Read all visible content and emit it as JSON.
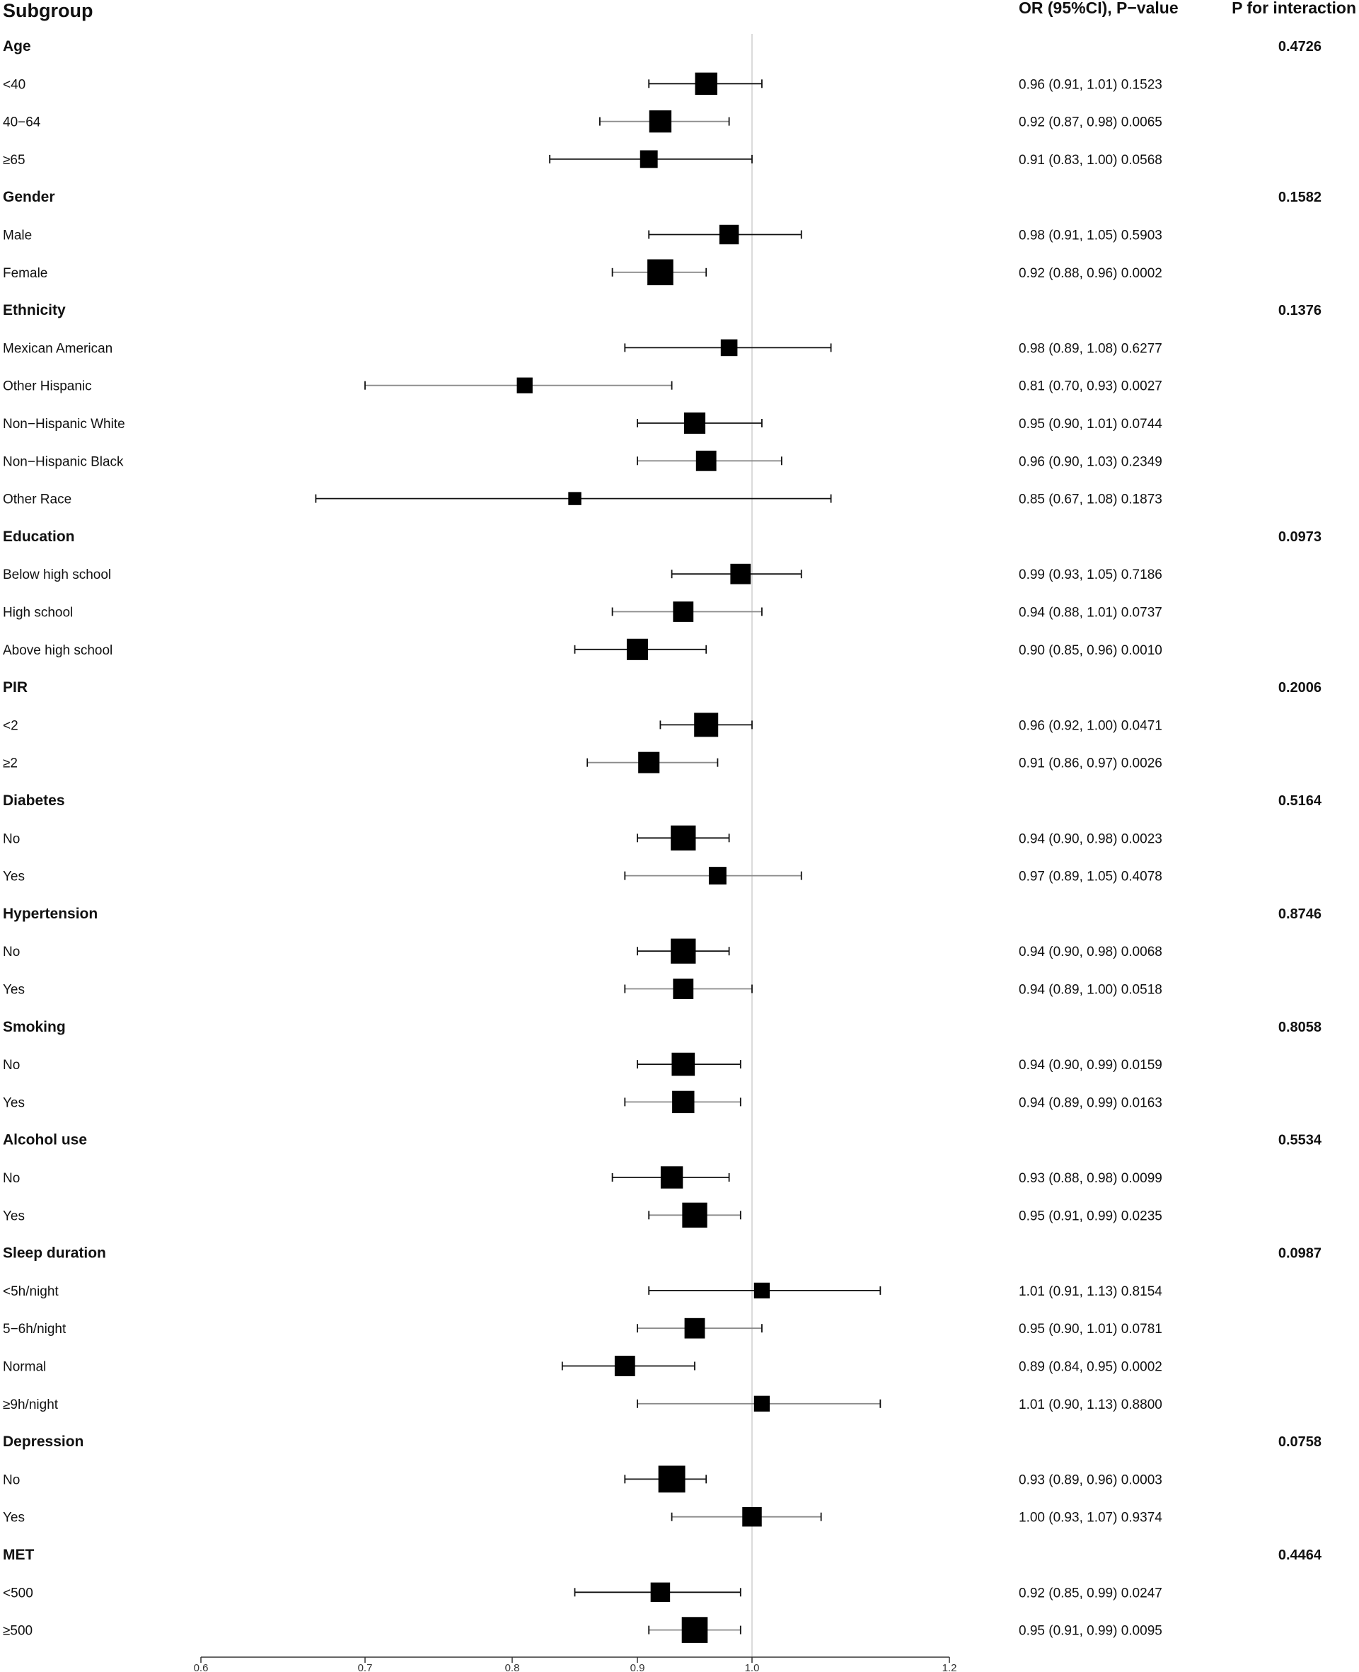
{
  "chart_data": {
    "type": "forest",
    "headers": {
      "subgroup": "Subgroup",
      "or": "OR (95%CI), P−value",
      "p_interaction": "P for interaction"
    },
    "reference_line": 1.0,
    "xlim": [
      0.6,
      1.2
    ],
    "x_ticks": [
      {
        "value": 0.6,
        "label": "0.6"
      },
      {
        "value": 0.7,
        "label": "0.7"
      },
      {
        "value": 0.8,
        "label": "0.8"
      },
      {
        "value": 0.9,
        "label": "0.9"
      },
      {
        "value": 1.0,
        "label": "1.0"
      },
      {
        "value": 1.2,
        "label": "1.2"
      }
    ],
    "groups": [
      {
        "name": "Age",
        "p_interaction": "0.4726",
        "rows": [
          {
            "label": "<40",
            "or": 0.96,
            "lo": 0.91,
            "hi": 1.01,
            "text": "0.96 (0.91, 1.01) 0.1523",
            "weight": 0.9
          },
          {
            "label": "40−64",
            "or": 0.92,
            "lo": 0.87,
            "hi": 0.98,
            "text": "0.92 (0.87, 0.98) 0.0065",
            "weight": 0.9
          },
          {
            "label": "≥65",
            "or": 0.91,
            "lo": 0.83,
            "hi": 1.0,
            "text": "0.91 (0.83, 1.00) 0.0568",
            "weight": 0.65
          }
        ]
      },
      {
        "name": "Gender",
        "p_interaction": "0.1582",
        "rows": [
          {
            "label": "Male",
            "or": 0.98,
            "lo": 0.91,
            "hi": 1.05,
            "text": "0.98 (0.91, 1.05) 0.5903",
            "weight": 0.75
          },
          {
            "label": "Female",
            "or": 0.92,
            "lo": 0.88,
            "hi": 0.96,
            "text": "0.92 (0.88, 0.96) 0.0002",
            "weight": 1.1
          }
        ]
      },
      {
        "name": "Ethnicity",
        "p_interaction": "0.1376",
        "rows": [
          {
            "label": "Mexican American",
            "or": 0.98,
            "lo": 0.89,
            "hi": 1.08,
            "text": "0.98 (0.89, 1.08) 0.6277",
            "weight": 0.6
          },
          {
            "label": "Other Hispanic",
            "or": 0.81,
            "lo": 0.7,
            "hi": 0.93,
            "text": "0.81 (0.70, 0.93) 0.0027",
            "weight": 0.55
          },
          {
            "label": "Non−Hispanic White",
            "or": 0.95,
            "lo": 0.9,
            "hi": 1.01,
            "text": "0.95 (0.90, 1.01) 0.0744",
            "weight": 0.85
          },
          {
            "label": "Non−Hispanic Black",
            "or": 0.96,
            "lo": 0.9,
            "hi": 1.03,
            "text": "0.96 (0.90, 1.03) 0.2349",
            "weight": 0.8
          },
          {
            "label": "Other Race",
            "or": 0.85,
            "lo": 0.67,
            "hi": 1.08,
            "text": "0.85 (0.67, 1.08) 0.1873",
            "weight": 0.4
          }
        ]
      },
      {
        "name": "Education",
        "p_interaction": "0.0973",
        "rows": [
          {
            "label": "Below high school",
            "or": 0.99,
            "lo": 0.93,
            "hi": 1.05,
            "text": "0.99 (0.93, 1.05) 0.7186",
            "weight": 0.8
          },
          {
            "label": "High school",
            "or": 0.94,
            "lo": 0.88,
            "hi": 1.01,
            "text": "0.94 (0.88, 1.01) 0.0737",
            "weight": 0.8
          },
          {
            "label": "Above high school",
            "or": 0.9,
            "lo": 0.85,
            "hi": 0.96,
            "text": "0.90 (0.85, 0.96) 0.0010",
            "weight": 0.85
          }
        ]
      },
      {
        "name": "PIR",
        "p_interaction": "0.2006",
        "rows": [
          {
            "label": "<2",
            "or": 0.96,
            "lo": 0.92,
            "hi": 1.0,
            "text": "0.96 (0.92, 1.00) 0.0471",
            "weight": 1.0
          },
          {
            "label": "≥2",
            "or": 0.91,
            "lo": 0.86,
            "hi": 0.97,
            "text": "0.91 (0.86, 0.97) 0.0026",
            "weight": 0.85
          }
        ]
      },
      {
        "name": "Diabetes",
        "p_interaction": "0.5164",
        "rows": [
          {
            "label": "No",
            "or": 0.94,
            "lo": 0.9,
            "hi": 0.98,
            "text": "0.94 (0.90, 0.98) 0.0023",
            "weight": 1.05
          },
          {
            "label": "Yes",
            "or": 0.97,
            "lo": 0.89,
            "hi": 1.05,
            "text": "0.97 (0.89, 1.05) 0.4078",
            "weight": 0.65
          }
        ]
      },
      {
        "name": "Hypertension",
        "p_interaction": "0.8746",
        "rows": [
          {
            "label": "No",
            "or": 0.94,
            "lo": 0.9,
            "hi": 0.98,
            "text": "0.94 (0.90, 0.98) 0.0068",
            "weight": 1.05
          },
          {
            "label": "Yes",
            "or": 0.94,
            "lo": 0.89,
            "hi": 1.0,
            "text": "0.94 (0.89, 1.00) 0.0518",
            "weight": 0.8
          }
        ]
      },
      {
        "name": "Smoking",
        "p_interaction": "0.8058",
        "rows": [
          {
            "label": "No",
            "or": 0.94,
            "lo": 0.9,
            "hi": 0.99,
            "text": "0.94 (0.90, 0.99) 0.0159",
            "weight": 0.95
          },
          {
            "label": "Yes",
            "or": 0.94,
            "lo": 0.89,
            "hi": 0.99,
            "text": "0.94 (0.89, 0.99) 0.0163",
            "weight": 0.9
          }
        ]
      },
      {
        "name": "Alcohol use",
        "p_interaction": "0.5534",
        "rows": [
          {
            "label": "No",
            "or": 0.93,
            "lo": 0.88,
            "hi": 0.98,
            "text": "0.93 (0.88, 0.98) 0.0099",
            "weight": 0.9
          },
          {
            "label": "Yes",
            "or": 0.95,
            "lo": 0.91,
            "hi": 0.99,
            "text": "0.95 (0.91, 0.99) 0.0235",
            "weight": 1.05
          }
        ]
      },
      {
        "name": "Sleep duration",
        "p_interaction": "0.0987",
        "rows": [
          {
            "label": "<5h/night",
            "or": 1.01,
            "lo": 0.91,
            "hi": 1.13,
            "text": "1.01 (0.91, 1.13) 0.8154",
            "weight": 0.55
          },
          {
            "label": "5−6h/night",
            "or": 0.95,
            "lo": 0.9,
            "hi": 1.01,
            "text": "0.95 (0.90, 1.01) 0.0781",
            "weight": 0.8
          },
          {
            "label": "Normal",
            "or": 0.89,
            "lo": 0.84,
            "hi": 0.95,
            "text": "0.89 (0.84, 0.95) 0.0002",
            "weight": 0.8
          },
          {
            "label": "≥9h/night",
            "or": 1.01,
            "lo": 0.9,
            "hi": 1.13,
            "text": "1.01 (0.90, 1.13) 0.8800",
            "weight": 0.55
          }
        ]
      },
      {
        "name": "Depression",
        "p_interaction": "0.0758",
        "rows": [
          {
            "label": "No",
            "or": 0.93,
            "lo": 0.89,
            "hi": 0.96,
            "text": "0.93 (0.89, 0.96) 0.0003",
            "weight": 1.15
          },
          {
            "label": "Yes",
            "or": 1.0,
            "lo": 0.93,
            "hi": 1.07,
            "text": "1.00 (0.93, 1.07) 0.9374",
            "weight": 0.75
          }
        ]
      },
      {
        "name": "MET",
        "p_interaction": "0.4464",
        "rows": [
          {
            "label": "<500",
            "or": 0.92,
            "lo": 0.85,
            "hi": 0.99,
            "text": "0.92 (0.85, 0.99) 0.0247",
            "weight": 0.75
          },
          {
            "label": "≥500",
            "or": 0.95,
            "lo": 0.91,
            "hi": 0.99,
            "text": "0.95 (0.91, 0.99) 0.0095",
            "weight": 1.1
          }
        ]
      }
    ]
  }
}
